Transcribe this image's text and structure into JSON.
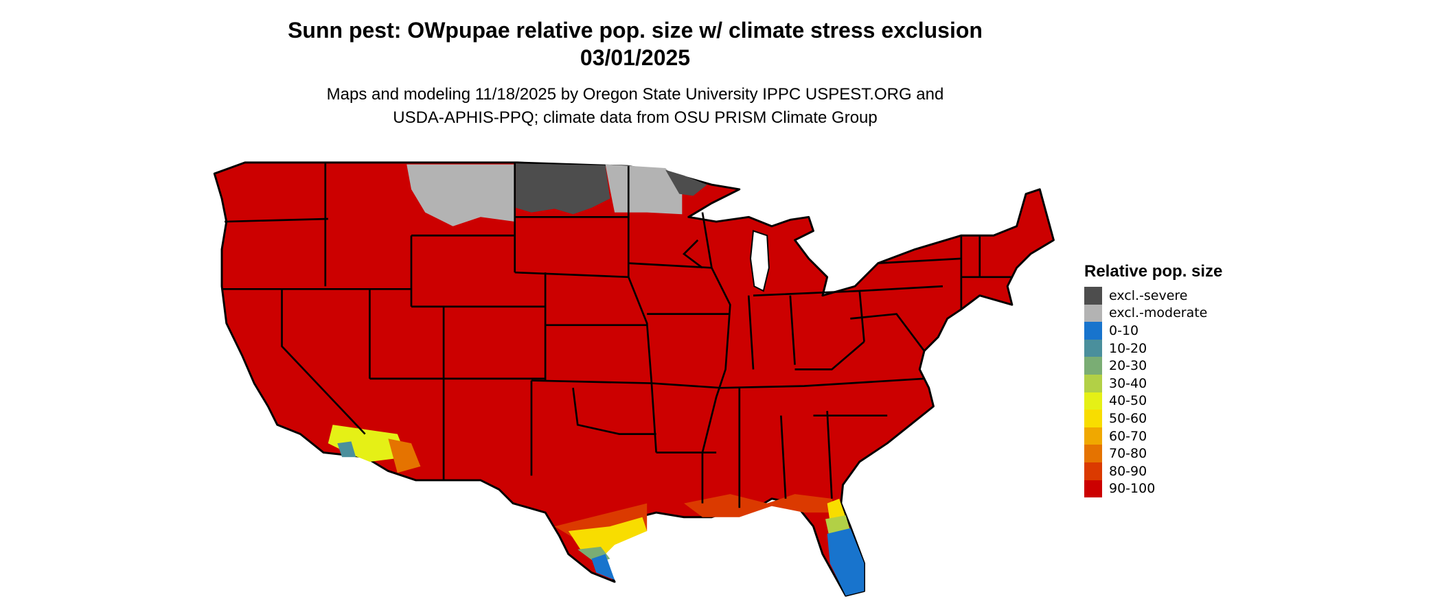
{
  "title": {
    "line1": "Sunn pest: OWpupae relative pop. size w/ climate stress exclusion",
    "line2": "03/01/2025"
  },
  "subtitle": {
    "line1": "Maps and modeling 11/18/2025 by Oregon State University IPPC USPEST.ORG and",
    "line2": "USDA-APHIS-PPQ; climate data from OSU PRISM Climate Group"
  },
  "legend": {
    "title": "Relative pop. size",
    "items": [
      {
        "label": "excl.-severe",
        "color": "#4d4d4d"
      },
      {
        "label": "excl.-moderate",
        "color": "#b3b3b3"
      },
      {
        "label": "0-10",
        "color": "#1874cd"
      },
      {
        "label": "10-20",
        "color": "#4a8f9c"
      },
      {
        "label": "20-30",
        "color": "#7aad74"
      },
      {
        "label": "30-40",
        "color": "#b2d046"
      },
      {
        "label": "40-50",
        "color": "#e5f016"
      },
      {
        "label": "50-60",
        "color": "#f8dd00"
      },
      {
        "label": "60-70",
        "color": "#f0a800"
      },
      {
        "label": "70-80",
        "color": "#e57300"
      },
      {
        "label": "80-90",
        "color": "#db3a00"
      },
      {
        "label": "90-100",
        "color": "#cc0000"
      }
    ]
  }
}
